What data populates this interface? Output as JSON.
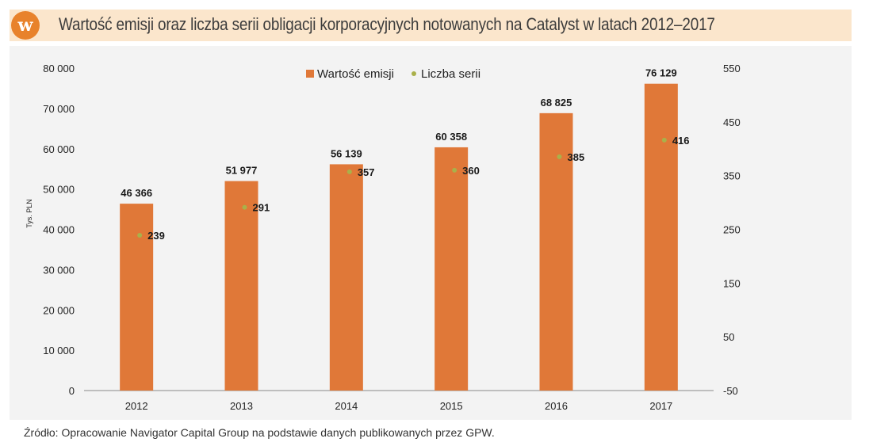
{
  "header": {
    "logo_letter": "w",
    "title": "Wartość emisji oraz liczba serii obligacji korporacyjnych notowanych na Catalyst w latach 2012–2017"
  },
  "source": "Źródło: Opracowanie Navigator Capital Group na podstawie danych publikowanych przez GPW.",
  "colors": {
    "bar": "#e07838",
    "dot": "#aab04a",
    "header_bg": "#fbe6cc",
    "logo": "#e8822b"
  },
  "chart_data": {
    "type": "bar",
    "categories": [
      "2012",
      "2013",
      "2014",
      "2015",
      "2016",
      "2017"
    ],
    "series": [
      {
        "name": "Wartość emisji",
        "type": "bar",
        "axis": "left",
        "values": [
          46366,
          51977,
          56139,
          60358,
          68825,
          76129
        ],
        "labels": [
          "46 366",
          "51 977",
          "56 139",
          "60 358",
          "68 825",
          "76 129"
        ]
      },
      {
        "name": "Liczba serii",
        "type": "scatter",
        "axis": "right",
        "values": [
          239,
          291,
          357,
          360,
          385,
          416
        ],
        "labels": [
          "239",
          "291",
          "357",
          "360",
          "385",
          "416"
        ]
      }
    ],
    "ylabel": "Tys. PLN",
    "ylim": [
      0,
      80000
    ],
    "yticks": [
      0,
      10000,
      20000,
      30000,
      40000,
      50000,
      60000,
      70000,
      80000
    ],
    "ytick_labels": [
      "0",
      "10 000",
      "20 000",
      "30 000",
      "40 000",
      "50 000",
      "60 000",
      "70 000",
      "80 000"
    ],
    "y2lim": [
      -50,
      550
    ],
    "y2ticks": [
      -50,
      50,
      150,
      250,
      350,
      450,
      550
    ],
    "y2tick_labels": [
      "-50",
      "50",
      "150",
      "250",
      "350",
      "450",
      "550"
    ],
    "legend": [
      "Wartość emisji",
      "Liczba serii"
    ],
    "legend_position": "top-center"
  }
}
